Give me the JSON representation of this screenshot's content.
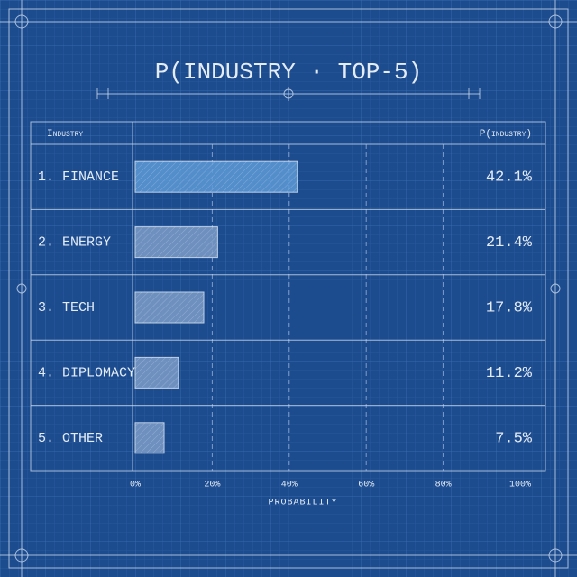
{
  "chart_data": {
    "type": "bar",
    "orientation": "horizontal",
    "title": "P(INDUSTRY · TOP-5)",
    "category_header": "Industry",
    "value_header": "P(industry)",
    "x_label": "PROBABILITY",
    "categories": [
      "1. FINANCE",
      "2. ENERGY",
      "3. TECH",
      "4. DIPLOMACY",
      "5. OTHER"
    ],
    "values": [
      42.1,
      21.4,
      17.8,
      11.2,
      7.5
    ],
    "value_labels": [
      "42.1%",
      "21.4%",
      "17.8%",
      "11.2%",
      "7.5%"
    ],
    "colors": [
      "#5d9ad6",
      "#7d9cc8",
      "#7d9cc8",
      "#7d9cc8",
      "#7d9cc8"
    ],
    "xlim": [
      0,
      100
    ],
    "xticks": [
      {
        "value": 0,
        "label": "0%"
      },
      {
        "value": 20,
        "label": "20%"
      },
      {
        "value": 40,
        "label": "40%"
      },
      {
        "value": 60,
        "label": "60%"
      },
      {
        "value": 80,
        "label": "80%"
      },
      {
        "value": 100,
        "label": "100%"
      }
    ],
    "grid": true
  }
}
